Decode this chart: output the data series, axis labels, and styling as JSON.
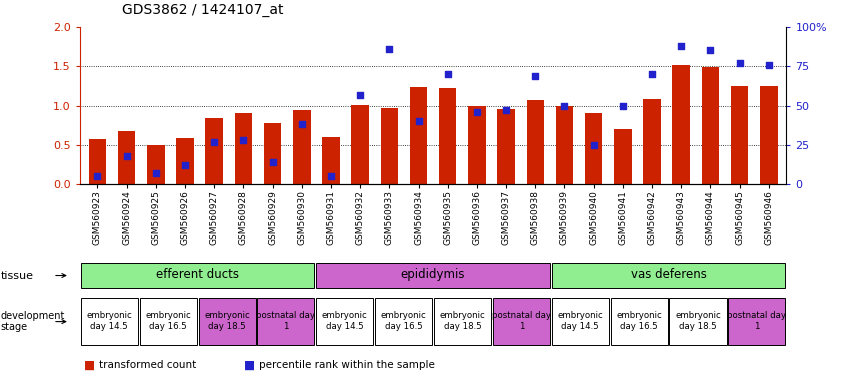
{
  "title": "GDS3862 / 1424107_at",
  "samples": [
    "GSM560923",
    "GSM560924",
    "GSM560925",
    "GSM560926",
    "GSM560927",
    "GSM560928",
    "GSM560929",
    "GSM560930",
    "GSM560931",
    "GSM560932",
    "GSM560933",
    "GSM560934",
    "GSM560935",
    "GSM560936",
    "GSM560937",
    "GSM560938",
    "GSM560939",
    "GSM560940",
    "GSM560941",
    "GSM560942",
    "GSM560943",
    "GSM560944",
    "GSM560945",
    "GSM560946"
  ],
  "red_values": [
    0.57,
    0.68,
    0.5,
    0.59,
    0.84,
    0.9,
    0.78,
    0.94,
    0.6,
    1.01,
    0.97,
    1.23,
    1.22,
    1.0,
    0.96,
    1.07,
    1.0,
    0.91,
    0.7,
    1.08,
    1.51,
    1.49,
    1.25,
    1.25
  ],
  "blue_values": [
    5,
    18,
    7,
    12,
    27,
    28,
    14,
    38,
    5,
    57,
    86,
    40,
    70,
    46,
    47,
    69,
    50,
    25,
    50,
    70,
    88,
    85,
    77,
    76
  ],
  "left_ylim": [
    0,
    2
  ],
  "right_ylim": [
    0,
    100
  ],
  "left_yticks": [
    0,
    0.5,
    1.0,
    1.5,
    2.0
  ],
  "right_yticks": [
    0,
    25,
    50,
    75,
    100
  ],
  "right_yticklabels": [
    "0",
    "25",
    "50",
    "75",
    "100%"
  ],
  "tissue_groups": [
    {
      "label": "efferent ducts",
      "start": 0,
      "end": 7,
      "color": "#90EE90"
    },
    {
      "label": "epididymis",
      "start": 8,
      "end": 15,
      "color": "#CC66CC"
    },
    {
      "label": "vas deferens",
      "start": 16,
      "end": 23,
      "color": "#90EE90"
    }
  ],
  "dev_stage_groups": [
    {
      "label": "embryonic\nday 14.5",
      "start": 0,
      "end": 1,
      "color": "#FFFFFF"
    },
    {
      "label": "embryonic\nday 16.5",
      "start": 2,
      "end": 3,
      "color": "#FFFFFF"
    },
    {
      "label": "embryonic\nday 18.5",
      "start": 4,
      "end": 5,
      "color": "#CC66CC"
    },
    {
      "label": "postnatal day\n1",
      "start": 6,
      "end": 7,
      "color": "#CC66CC"
    },
    {
      "label": "embryonic\nday 14.5",
      "start": 8,
      "end": 9,
      "color": "#FFFFFF"
    },
    {
      "label": "embryonic\nday 16.5",
      "start": 10,
      "end": 11,
      "color": "#FFFFFF"
    },
    {
      "label": "embryonic\nday 18.5",
      "start": 12,
      "end": 13,
      "color": "#FFFFFF"
    },
    {
      "label": "postnatal day\n1",
      "start": 14,
      "end": 15,
      "color": "#CC66CC"
    },
    {
      "label": "embryonic\nday 14.5",
      "start": 16,
      "end": 17,
      "color": "#FFFFFF"
    },
    {
      "label": "embryonic\nday 16.5",
      "start": 18,
      "end": 19,
      "color": "#FFFFFF"
    },
    {
      "label": "embryonic\nday 18.5",
      "start": 20,
      "end": 21,
      "color": "#FFFFFF"
    },
    {
      "label": "postnatal day\n1",
      "start": 22,
      "end": 23,
      "color": "#CC66CC"
    }
  ],
  "bar_color": "#CC2200",
  "dot_color": "#2222CC",
  "bg_color": "#FFFFFF",
  "legend_red": "transformed count",
  "legend_blue": "percentile rank within the sample",
  "left_label_color": "#CC2200",
  "right_label_color": "#2222CC"
}
